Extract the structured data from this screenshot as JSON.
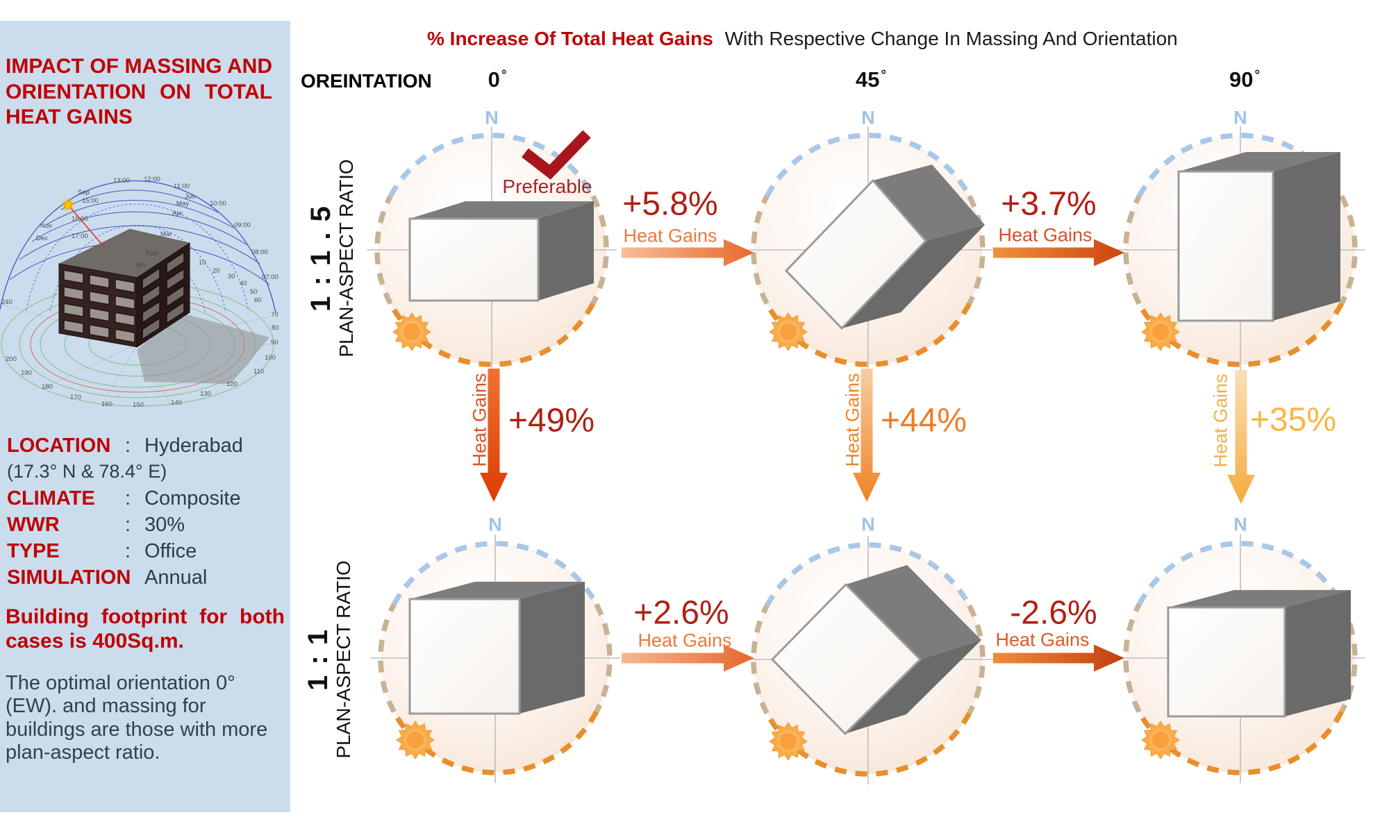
{
  "sidebar": {
    "title": "IMPACT OF MASSING AND ORIENTATION ON TOTAL HEAT GAINS",
    "info": [
      {
        "label": "LOCATION",
        "value": "Hyderabad"
      },
      {
        "label": "CLIMATE",
        "value": "Composite"
      },
      {
        "label": "WWR",
        "value": "30%"
      },
      {
        "label": "TYPE",
        "value": "Office"
      },
      {
        "label": "SIMULATION",
        "value": "Annual"
      }
    ],
    "coordinates": "(17.3° N  & 78.4° E)",
    "footprint_note": "Building footprint for both cases is 400Sq.m.",
    "optimal_note": "The optimal orientation 0°(EW). and massing for buildings are those with more plan-aspect ratio.",
    "sunpath": {
      "time_labels": [
        "13:00",
        "12:00",
        "11:00",
        "10:00",
        "09:00",
        "08:00",
        "07:00",
        "15:00",
        "16:00",
        "17:00"
      ],
      "month_labels": [
        "Sep",
        "Nov",
        "Dec",
        "Jun",
        "May",
        "Apr",
        "Mar",
        "Feb",
        "Jan"
      ],
      "azimuth_labels": [
        "240",
        "200",
        "190",
        "180",
        "170",
        "160",
        "150",
        "140",
        "130",
        "120",
        "110",
        "100",
        "90",
        "80",
        "70",
        "10",
        "20",
        "30",
        "40",
        "50",
        "60"
      ]
    }
  },
  "header": {
    "title_highlight": "% Increase Of Total Heat Gains",
    "title_rest": "With Respective Change In Massing And Orientation",
    "orientation_label": "OREINTATION",
    "degree_symbol": "°",
    "columns": [
      "0",
      "45",
      "90"
    ]
  },
  "rows": [
    {
      "ratio": "1 : 1 . 5",
      "caption": "PLAN-ASPECT RATIO"
    },
    {
      "ratio": "1 : 1",
      "caption": "PLAN-ASPECT RATIO"
    }
  ],
  "labels": {
    "north": "N",
    "heat_gains": "Heat Gains",
    "preferable": "Preferable",
    "colon": ":"
  },
  "transitions": {
    "r1_0_to_45": "+5.8%",
    "r1_45_to_90": "+3.7%",
    "r2_0_to_45": "+2.6%",
    "r2_45_to_90": "-2.6%",
    "col0_ratio_change": "+49%",
    "col45_ratio_change": "+44%",
    "col90_ratio_change": "+35%"
  },
  "colors": {
    "accent_red": "#C00000",
    "percent_dark_red": "#AF2014",
    "percent_orange": "#ED7D2B",
    "percent_amber": "#F5B842",
    "heat_gains_orange": "#EA7A3C",
    "heat_gains_red": "#D6502C",
    "north_blue": "#9DC3E6",
    "dash_blue": "#A9C7E7",
    "dash_orange": "#E88E2C",
    "sidebar_bg": "#CBDCEC",
    "building_gray": "#7C7C7C"
  }
}
